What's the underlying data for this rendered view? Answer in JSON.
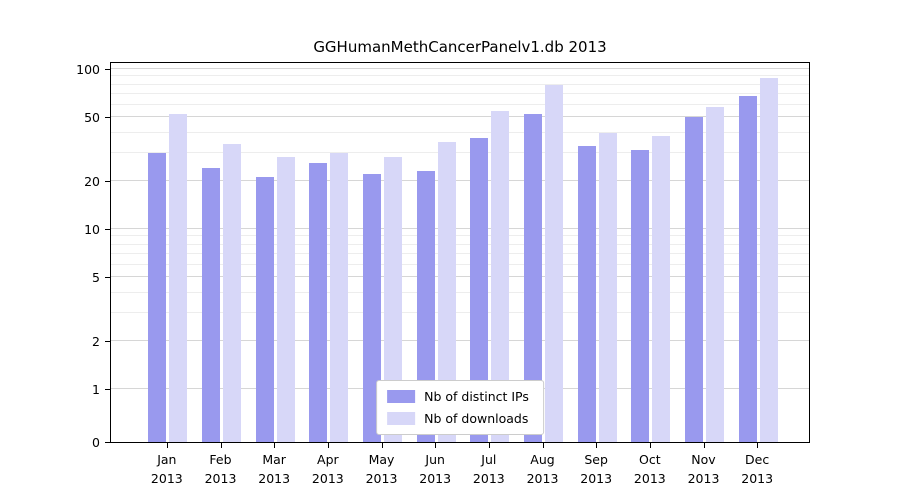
{
  "chart_data": {
    "type": "bar",
    "title": "GGHumanMethCancerPanelv1.db 2013",
    "categories": [
      {
        "month": "Jan",
        "year": "2013"
      },
      {
        "month": "Feb",
        "year": "2013"
      },
      {
        "month": "Mar",
        "year": "2013"
      },
      {
        "month": "Apr",
        "year": "2013"
      },
      {
        "month": "May",
        "year": "2013"
      },
      {
        "month": "Jun",
        "year": "2013"
      },
      {
        "month": "Jul",
        "year": "2013"
      },
      {
        "month": "Aug",
        "year": "2013"
      },
      {
        "month": "Sep",
        "year": "2013"
      },
      {
        "month": "Oct",
        "year": "2013"
      },
      {
        "month": "Nov",
        "year": "2013"
      },
      {
        "month": "Dec",
        "year": "2013"
      }
    ],
    "series": [
      {
        "name": "Nb of distinct IPs",
        "color": "#9999ee",
        "values": [
          30,
          24,
          21,
          26,
          22,
          23,
          37,
          52,
          33,
          31,
          50,
          68
        ]
      },
      {
        "name": "Nb of downloads",
        "color": "#d7d7f8",
        "values": [
          52,
          34,
          28,
          30,
          28,
          35,
          55,
          80,
          40,
          38,
          58,
          88
        ]
      }
    ],
    "yticks": [
      0,
      1,
      2,
      5,
      10,
      20,
      50,
      100
    ],
    "scale": "log",
    "ylim": [
      0,
      100
    ],
    "xlabel": "",
    "ylabel": "",
    "grid": true,
    "legend_position": "bottom-center"
  }
}
